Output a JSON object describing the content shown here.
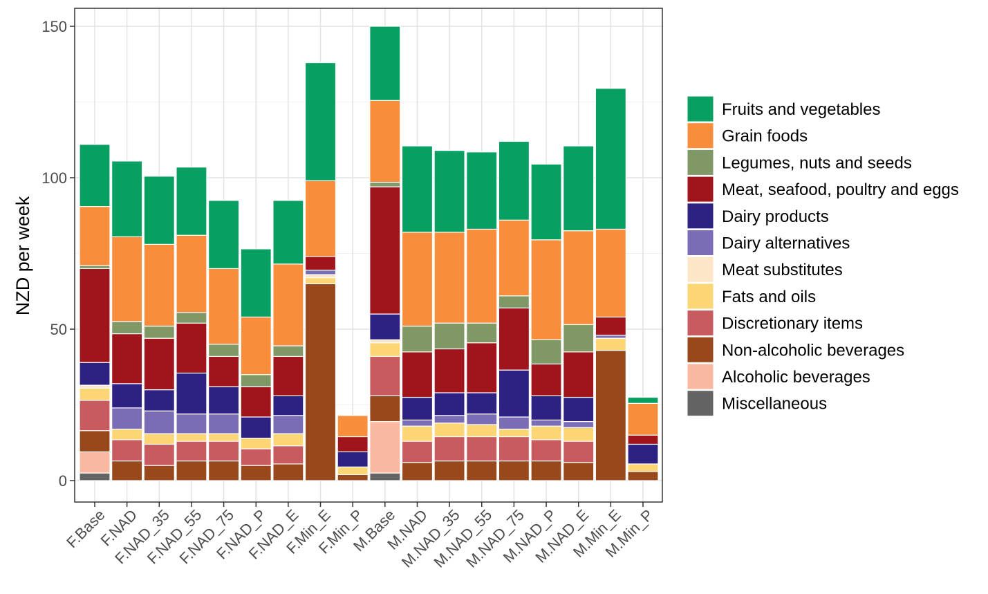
{
  "chart_data": {
    "type": "bar",
    "stacked": true,
    "title": "",
    "xlabel": "",
    "ylabel": "NZD per week",
    "ylim": [
      -7.5,
      156.5
    ],
    "yticks": [
      0,
      50,
      100,
      150
    ],
    "grid": true,
    "legend_position": "right",
    "categories": [
      "F.Base",
      "F.NAD",
      "F.NAD_35",
      "F.NAD_55",
      "F.NAD_75",
      "F.NAD_P",
      "F.NAD_E",
      "F.Min_E",
      "F.Min_P",
      "M.Base",
      "M.NAD",
      "M.NAD_35",
      "M.NAD_55",
      "M.NAD_75",
      "M.NAD_P",
      "M.NAD_E",
      "M.Min_E",
      "M.Min_P"
    ],
    "series": [
      {
        "name": "Miscellaneous",
        "color": "#636363",
        "values": [
          2.5,
          0,
          0,
          0,
          0,
          0,
          0,
          0,
          0,
          2.5,
          0,
          0,
          0,
          0,
          0,
          0,
          0,
          0
        ]
      },
      {
        "name": "Alcoholic beverages",
        "color": "#f9b9a1",
        "values": [
          7,
          0,
          0,
          0,
          0,
          0,
          0,
          0,
          0,
          17,
          0,
          0,
          0,
          0,
          0,
          0,
          0,
          0
        ]
      },
      {
        "name": "Non-alcoholic beverages",
        "color": "#98481a",
        "values": [
          7,
          6.5,
          5,
          6.5,
          6.5,
          5,
          5.5,
          65,
          2,
          8.5,
          6,
          6.5,
          6.5,
          6.5,
          6.5,
          6,
          43,
          3
        ]
      },
      {
        "name": "Discretionary items",
        "color": "#c75b5f",
        "values": [
          10,
          7,
          7,
          6.5,
          6.5,
          5.5,
          6,
          0,
          0,
          13,
          7,
          8,
          8,
          8,
          7,
          7,
          0,
          0
        ]
      },
      {
        "name": "Fats and oils",
        "color": "#fcd575",
        "values": [
          4,
          3.5,
          3.5,
          2.5,
          2.5,
          3.5,
          4,
          2,
          2.5,
          4.5,
          5,
          4.5,
          4,
          2.5,
          4.5,
          4.5,
          4,
          2.5
        ]
      },
      {
        "name": "Meat substitutes",
        "color": "#fde5c7",
        "values": [
          1,
          0,
          0,
          0,
          0,
          0,
          0,
          1,
          0,
          1,
          0,
          0,
          0,
          0,
          0,
          0,
          0,
          0
        ]
      },
      {
        "name": "Dairy alternatives",
        "color": "#7b6db5",
        "values": [
          0,
          7,
          7.5,
          6.5,
          6.5,
          0,
          6,
          1.5,
          0,
          0,
          2,
          2.5,
          3.5,
          4,
          2,
          2,
          1,
          0
        ]
      },
      {
        "name": "Dairy products",
        "color": "#2d2181",
        "values": [
          7.5,
          8,
          7,
          13.5,
          9,
          7,
          6.5,
          0,
          5,
          8.5,
          7.5,
          7.5,
          7,
          15.5,
          8,
          8,
          0,
          6.5
        ]
      },
      {
        "name": "Meat, seafood, poultry and eggs",
        "color": "#a0141b",
        "values": [
          31,
          16.5,
          17,
          16.5,
          10,
          10,
          13,
          4.5,
          5,
          42,
          15,
          14.5,
          16.5,
          20.5,
          10.5,
          15,
          6,
          3
        ]
      },
      {
        "name": "Legumes, nuts and seeds",
        "color": "#809866",
        "values": [
          1,
          4,
          4,
          3.5,
          4,
          4,
          3.5,
          0,
          0,
          1.5,
          8.5,
          8.5,
          6.5,
          4,
          8,
          9,
          0,
          0
        ]
      },
      {
        "name": "Grain foods",
        "color": "#f88e3c",
        "values": [
          19.5,
          28,
          27,
          25.5,
          25,
          19,
          27,
          25,
          7,
          27,
          31,
          30,
          31,
          25,
          33,
          31,
          29,
          10.5
        ]
      },
      {
        "name": "Fruits and vegetables",
        "color": "#08a062",
        "values": [
          20.5,
          25,
          22.5,
          22.5,
          22.5,
          22.5,
          21,
          39,
          0,
          24.5,
          28.5,
          27,
          25.5,
          26,
          25,
          28,
          46.5,
          2
        ]
      }
    ],
    "legend_order": [
      "Fruits and vegetables",
      "Grain foods",
      "Legumes, nuts and seeds",
      "Meat, seafood, poultry and eggs",
      "Dairy products",
      "Dairy alternatives",
      "Meat substitutes",
      "Fats and oils",
      "Discretionary items",
      "Non-alcoholic beverages",
      "Alcoholic beverages",
      "Miscellaneous"
    ]
  }
}
